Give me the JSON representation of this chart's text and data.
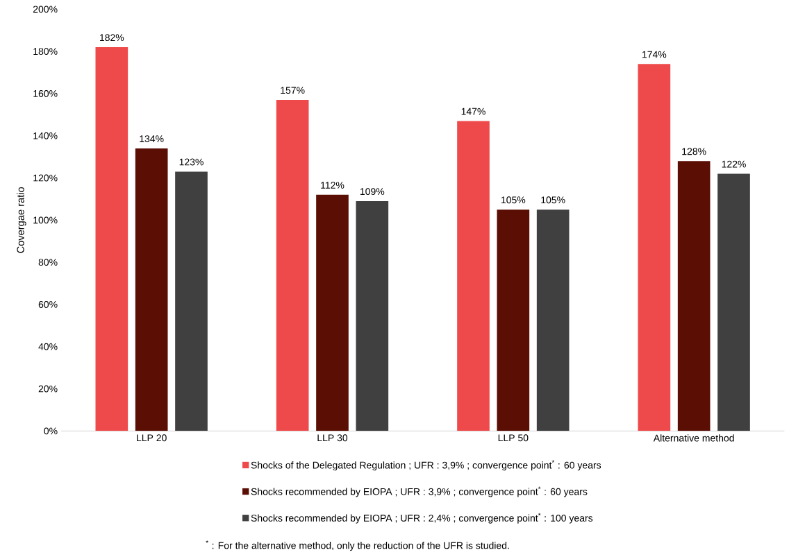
{
  "chart_data": {
    "type": "bar",
    "ylabel": "Covergae ratio",
    "categories": [
      "LLP 20",
      "LLP 30",
      "LLP 50",
      "Alternative method"
    ],
    "series": [
      {
        "name": "Shocks of the Delegated Regulation ; UFR : 3,9% ; convergence point$^{*}$ : 60 years",
        "color": "#ef4a4b",
        "values": [
          182,
          157,
          147,
          174
        ],
        "value_labels": [
          "182%",
          "157%",
          "147%",
          "174%"
        ]
      },
      {
        "name": "Shocks recommended by EIOPA ; UFR : 3,9% ; convergence point$^{*}$ : 60 years",
        "color": "#5a0e04",
        "values": [
          134,
          112,
          105,
          128
        ],
        "value_labels": [
          "134%",
          "112%",
          "105%",
          "128%"
        ]
      },
      {
        "name": "Shocks recommended by EIOPA ; UFR : 2,4% ; convergence point$^{*}$ : 100 years",
        "color": "#404040",
        "values": [
          123,
          109,
          105,
          122
        ],
        "value_labels": [
          "123%",
          "109%",
          "105%",
          "122%"
        ]
      }
    ],
    "ylim": [
      0,
      200
    ],
    "yticks": [
      {
        "value": 0,
        "label": "0%"
      },
      {
        "value": 20,
        "label": "20%"
      },
      {
        "value": 40,
        "label": "40%"
      },
      {
        "value": 60,
        "label": "60%"
      },
      {
        "value": 80,
        "label": "80%"
      },
      {
        "value": 100,
        "label": "100%"
      },
      {
        "value": 120,
        "label": "120%"
      },
      {
        "value": 140,
        "label": "140%"
      },
      {
        "value": 160,
        "label": "160%"
      },
      {
        "value": 180,
        "label": "180%"
      },
      {
        "value": 200,
        "label": "200%"
      }
    ],
    "legend": "bottom",
    "annotations": [
      "$^{*}$ : For the alternative method, only the reduction of the UFR is studied."
    ]
  }
}
